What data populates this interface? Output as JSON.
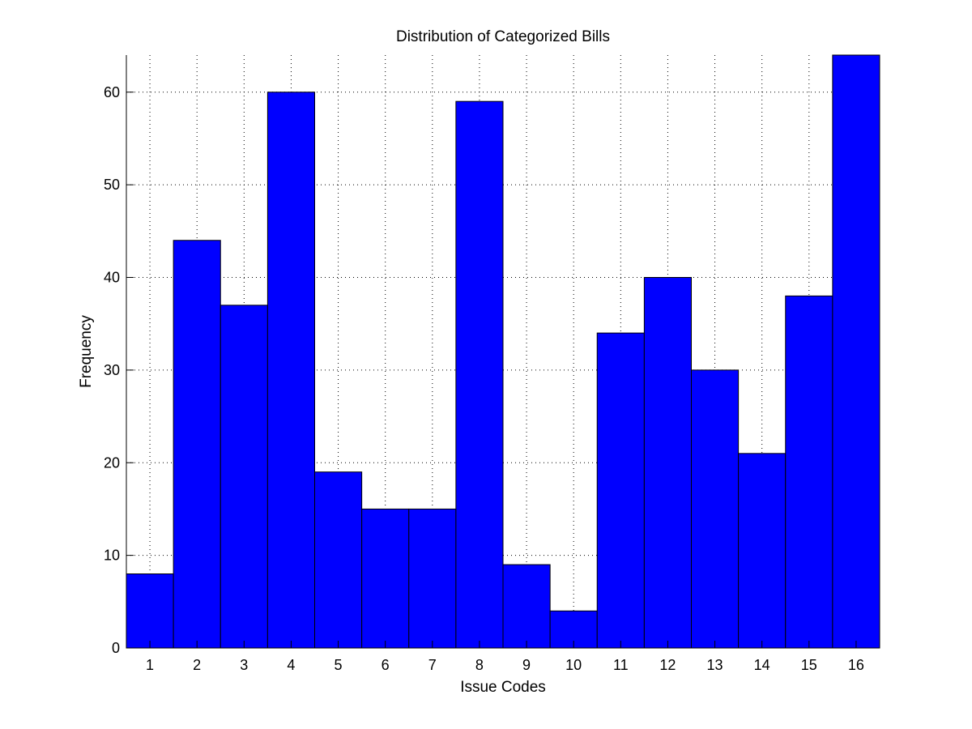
{
  "chart_data": {
    "type": "bar",
    "title": "Distribution of Categorized Bills",
    "xlabel": "Issue Codes",
    "ylabel": "Frequency",
    "categories": [
      "1",
      "2",
      "3",
      "4",
      "5",
      "6",
      "7",
      "8",
      "9",
      "10",
      "11",
      "12",
      "13",
      "14",
      "15",
      "16"
    ],
    "values": [
      8,
      44,
      37,
      60,
      19,
      15,
      15,
      59,
      9,
      4,
      34,
      40,
      30,
      21,
      38,
      64
    ],
    "ylim": [
      0,
      64
    ],
    "yticks": [
      0,
      10,
      20,
      30,
      40,
      50,
      60
    ],
    "ytick_labels": [
      "0",
      "10",
      "20",
      "30",
      "40",
      "50",
      "60"
    ],
    "xlim": [
      0.5,
      16.5
    ],
    "grid": true,
    "bar_color": "#0000ff",
    "edge_color": "#000000",
    "grid_color": "#000000"
  }
}
